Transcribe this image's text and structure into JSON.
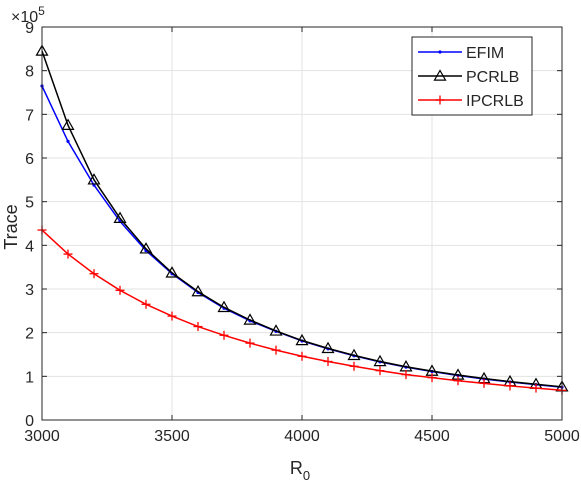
{
  "chart_data": {
    "type": "line",
    "xlabel": "R",
    "xlabel_subscript": "0",
    "ylabel": "Trace",
    "y_exponent_base": "×10",
    "y_exponent_power": "5",
    "xlim": [
      3000,
      5000
    ],
    "ylim": [
      0,
      9
    ],
    "xticks": [
      "3000",
      "3500",
      "4000",
      "4500",
      "5000"
    ],
    "yticks": [
      "0",
      "1",
      "2",
      "3",
      "4",
      "5",
      "6",
      "7",
      "8",
      "9"
    ],
    "grid": true,
    "legend_position": "top-right",
    "x": [
      3000,
      3100,
      3200,
      3300,
      3400,
      3500,
      3600,
      3700,
      3800,
      3900,
      4000,
      4100,
      4200,
      4300,
      4400,
      4500,
      4600,
      4700,
      4800,
      4900,
      5000
    ],
    "series": [
      {
        "name": "EFIM",
        "color": "#0000ff",
        "marker": "point",
        "values": [
          7.65,
          6.38,
          5.38,
          4.55,
          3.88,
          3.35,
          2.92,
          2.56,
          2.27,
          2.03,
          1.81,
          1.63,
          1.47,
          1.33,
          1.21,
          1.11,
          1.02,
          0.94,
          0.87,
          0.81,
          0.75
        ]
      },
      {
        "name": "PCRLB",
        "color": "#000000",
        "marker": "triangle",
        "values": [
          8.45,
          6.75,
          5.5,
          4.62,
          3.92,
          3.37,
          2.94,
          2.58,
          2.29,
          2.04,
          1.82,
          1.64,
          1.48,
          1.34,
          1.22,
          1.12,
          1.03,
          0.95,
          0.88,
          0.82,
          0.76
        ]
      },
      {
        "name": "IPCRLB",
        "color": "#ff0000",
        "marker": "plus",
        "values": [
          4.35,
          3.8,
          3.35,
          2.97,
          2.65,
          2.38,
          2.14,
          1.94,
          1.76,
          1.6,
          1.46,
          1.34,
          1.23,
          1.13,
          1.04,
          0.97,
          0.9,
          0.84,
          0.78,
          0.73,
          0.68
        ]
      }
    ]
  }
}
